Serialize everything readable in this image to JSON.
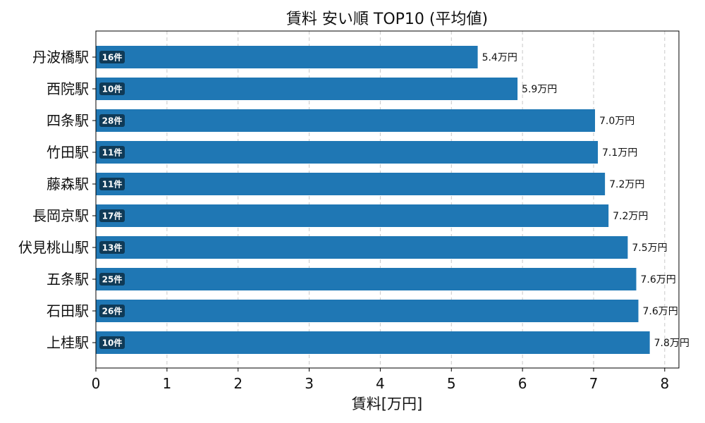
{
  "chart_data": {
    "type": "bar",
    "orientation": "horizontal",
    "title": "賃料 安い順 TOP10 (平均値)",
    "xlabel": "賃料[万円]",
    "ylabel": "",
    "xlim": [
      0,
      8.2
    ],
    "xticks": [
      0,
      1,
      2,
      3,
      4,
      5,
      6,
      7,
      8
    ],
    "xtick_labels": [
      "0",
      "1",
      "2",
      "3",
      "4",
      "5",
      "6",
      "7",
      "8"
    ],
    "grid": "x-dashed",
    "bar_color": "#1f77b4",
    "badge_color": "#0f3a57",
    "categories": [
      "丹波橋駅",
      "西院駅",
      "四条駅",
      "竹田駅",
      "藤森駅",
      "長岡京駅",
      "伏見桃山駅",
      "五条駅",
      "石田駅",
      "上桂駅"
    ],
    "values": [
      5.37,
      5.93,
      7.02,
      7.06,
      7.16,
      7.21,
      7.48,
      7.6,
      7.63,
      7.79
    ],
    "value_labels": [
      "5.4万円",
      "5.9万円",
      "7.0万円",
      "7.1万円",
      "7.2万円",
      "7.2万円",
      "7.5万円",
      "7.6万円",
      "7.6万円",
      "7.8万円"
    ],
    "count_labels": [
      "16件",
      "10件",
      "28件",
      "11件",
      "11件",
      "17件",
      "13件",
      "25件",
      "26件",
      "10件"
    ]
  }
}
